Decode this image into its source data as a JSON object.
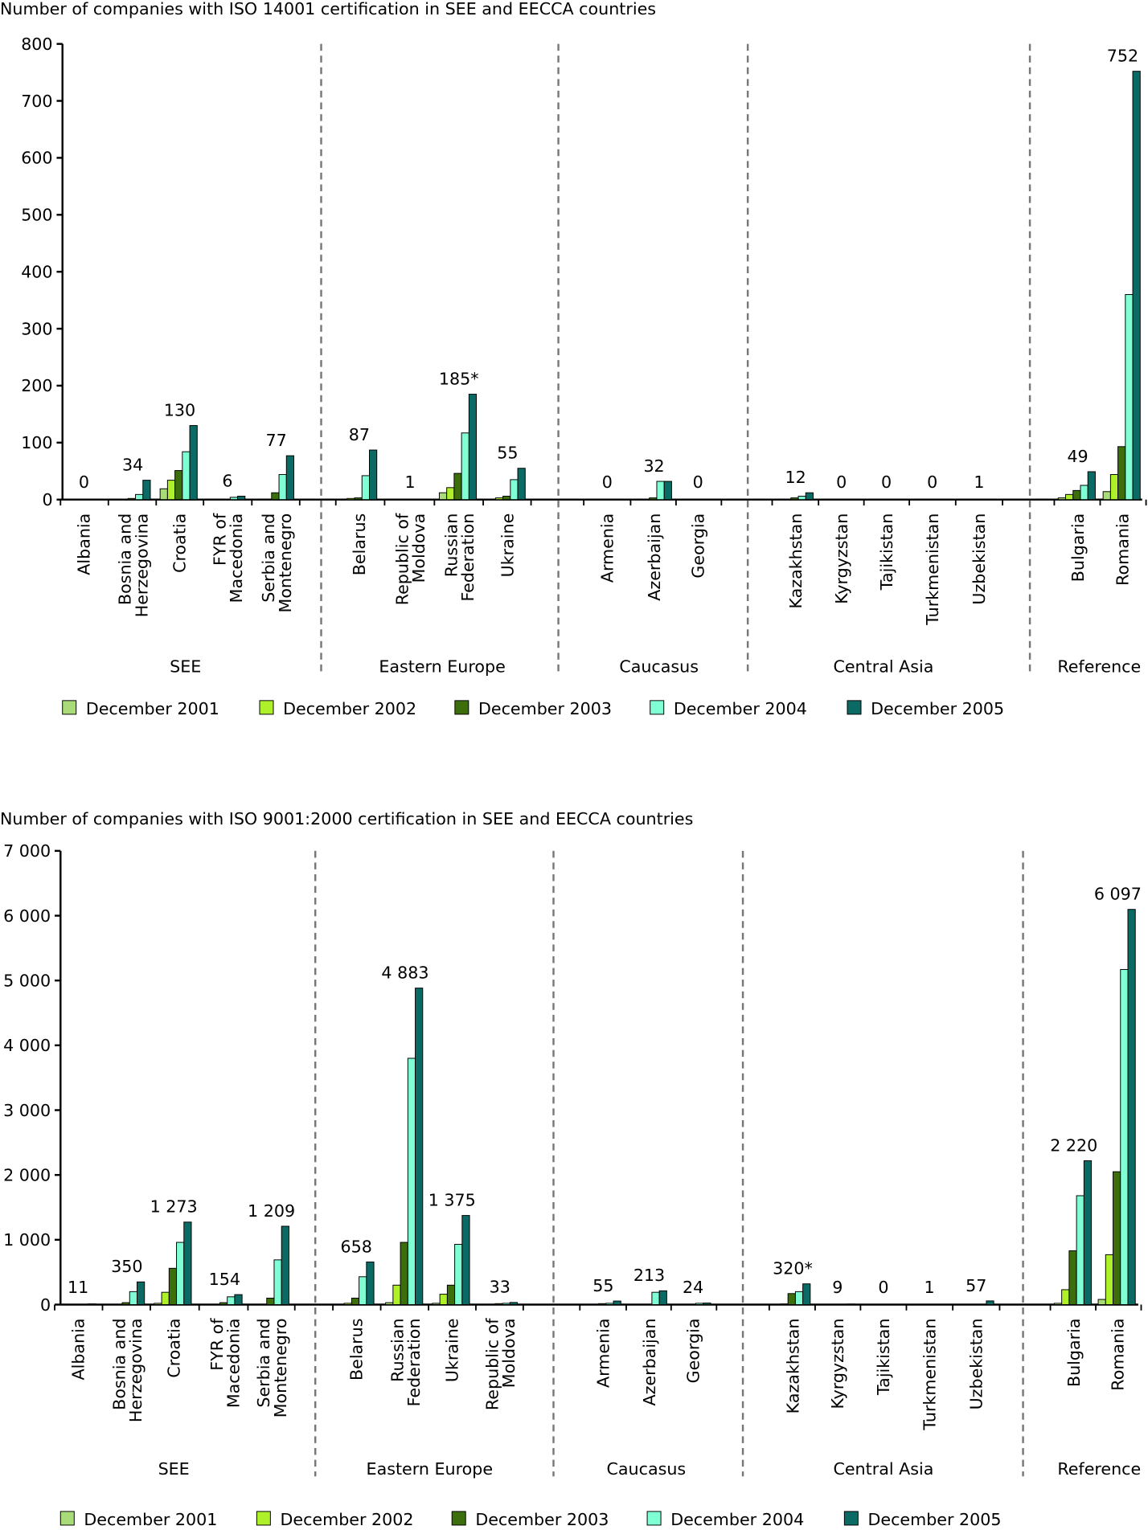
{
  "colors": {
    "December 2001": "#a9dc78",
    "December 2002": "#aef02a",
    "December 2003": "#3c6e0c",
    "December 2004": "#80ffd4",
    "December 2005": "#0b6a64"
  },
  "chart_data": [
    {
      "type": "bar",
      "title": "Number of companies with ISO 14001 certification in SEE and EECCA countries",
      "ylim": [
        0,
        800
      ],
      "yticks": [
        "0",
        "100",
        "200",
        "300",
        "400",
        "500",
        "600",
        "700",
        "800"
      ],
      "grid": false,
      "legend": "bottom",
      "series_names": [
        "December 2001",
        "December 2002",
        "December 2003",
        "December 2004",
        "December 2005"
      ],
      "groups": [
        "SEE",
        "Eastern Europe",
        "Caucasus",
        "Central Asia",
        "Reference"
      ],
      "countries": [
        {
          "name": "Albania",
          "group": "SEE",
          "label": "0",
          "values": [
            0,
            0,
            0,
            0,
            0
          ]
        },
        {
          "name": "Bosnia and Herzegovina",
          "group": "SEE",
          "label": "34",
          "values": [
            0,
            0,
            2,
            9,
            34
          ]
        },
        {
          "name": "Croatia",
          "group": "SEE",
          "label": "130",
          "values": [
            19,
            34,
            51,
            84,
            130
          ]
        },
        {
          "name": "FYR of Macedonia",
          "group": "SEE",
          "label": "6",
          "values": [
            0,
            0,
            0,
            4,
            6
          ]
        },
        {
          "name": "Serbia and Montenegro",
          "group": "SEE",
          "label": "77",
          "values": [
            0,
            0,
            12,
            44,
            77
          ]
        },
        {
          "name": "Belarus",
          "group": "Eastern Europe",
          "label": "87",
          "values": [
            0,
            2,
            3,
            42,
            87
          ]
        },
        {
          "name": "Republic of Moldova",
          "group": "Eastern Europe",
          "label": "1",
          "values": [
            0,
            0,
            0,
            0,
            1
          ]
        },
        {
          "name": "Russian Federation",
          "group": "Eastern Europe",
          "label": "185*",
          "values": [
            12,
            21,
            46,
            117,
            185
          ]
        },
        {
          "name": "Ukraine",
          "group": "Eastern Europe",
          "label": "55",
          "values": [
            0,
            3,
            6,
            35,
            55
          ]
        },
        {
          "name": "Armenia",
          "group": "Caucasus",
          "label": "0",
          "values": [
            0,
            0,
            0,
            0,
            0
          ]
        },
        {
          "name": "Azerbaijan",
          "group": "Caucasus",
          "label": "32",
          "values": [
            0,
            1,
            3,
            32,
            32
          ]
        },
        {
          "name": "Georgia",
          "group": "Caucasus",
          "label": "0",
          "values": [
            0,
            0,
            0,
            0,
            0
          ]
        },
        {
          "name": "Kazakhstan",
          "group": "Central Asia",
          "label": "12",
          "values": [
            0,
            0,
            3,
            6,
            12
          ]
        },
        {
          "name": "Kyrgyzstan",
          "group": "Central Asia",
          "label": "0",
          "values": [
            0,
            0,
            0,
            0,
            0
          ]
        },
        {
          "name": "Tajikistan",
          "group": "Central Asia",
          "label": "0",
          "values": [
            0,
            0,
            0,
            0,
            0
          ]
        },
        {
          "name": "Turkmenistan",
          "group": "Central Asia",
          "label": "0",
          "values": [
            0,
            0,
            0,
            0,
            0
          ]
        },
        {
          "name": "Uzbekistan",
          "group": "Central Asia",
          "label": "1",
          "values": [
            0,
            0,
            0,
            0,
            1
          ]
        },
        {
          "name": "Bulgaria",
          "group": "Reference",
          "label": "49",
          "values": [
            3,
            9,
            16,
            25,
            49
          ]
        },
        {
          "name": "Romania",
          "group": "Reference",
          "label": "752",
          "values": [
            14,
            44,
            93,
            360,
            752
          ]
        }
      ]
    },
    {
      "type": "bar",
      "title": "Number of companies with ISO 9001:2000 certification in SEE and EECCA countries",
      "ylim": [
        0,
        7000
      ],
      "yticks": [
        "0",
        "1 000",
        "2 000",
        "3 000",
        "4 000",
        "5 000",
        "6 000",
        "7 000"
      ],
      "grid": false,
      "legend": "bottom",
      "series_names": [
        "December 2001",
        "December 2002",
        "December 2003",
        "December 2004",
        "December 2005"
      ],
      "groups": [
        "SEE",
        "Eastern Europe",
        "Caucasus",
        "Central Asia",
        "Reference"
      ],
      "countries": [
        {
          "name": "Albania",
          "group": "SEE",
          "label": "11",
          "values": [
            0,
            0,
            0,
            0,
            11
          ]
        },
        {
          "name": "Bosnia and Herzegovina",
          "group": "SEE",
          "label": "350",
          "values": [
            0,
            0,
            30,
            200,
            350
          ]
        },
        {
          "name": "Croatia",
          "group": "SEE",
          "label": "1 273",
          "values": [
            20,
            190,
            560,
            960,
            1273
          ]
        },
        {
          "name": "FYR of Macedonia",
          "group": "SEE",
          "label": "154",
          "values": [
            0,
            0,
            30,
            120,
            154
          ]
        },
        {
          "name": "Serbia and Montenegro",
          "group": "SEE",
          "label": "1 209",
          "values": [
            0,
            0,
            100,
            690,
            1209
          ]
        },
        {
          "name": "Belarus",
          "group": "Eastern Europe",
          "label": "658",
          "values": [
            0,
            20,
            100,
            430,
            658
          ]
        },
        {
          "name": "Russian Federation",
          "group": "Eastern Europe",
          "label": "4 883",
          "values": [
            30,
            300,
            960,
            3800,
            4883
          ]
        },
        {
          "name": "Ukraine",
          "group": "Eastern Europe",
          "label": "1 375",
          "values": [
            20,
            160,
            300,
            930,
            1375
          ]
        },
        {
          "name": "Republic of Moldova",
          "group": "Eastern Europe",
          "label": "33",
          "values": [
            0,
            0,
            15,
            20,
            33
          ]
        },
        {
          "name": "Armenia",
          "group": "Caucasus",
          "label": "55",
          "values": [
            0,
            0,
            15,
            20,
            55
          ]
        },
        {
          "name": "Azerbaijan",
          "group": "Caucasus",
          "label": "213",
          "values": [
            0,
            0,
            0,
            190,
            213
          ]
        },
        {
          "name": "Georgia",
          "group": "Caucasus",
          "label": "24",
          "values": [
            0,
            0,
            0,
            20,
            24
          ]
        },
        {
          "name": "Kazakhstan",
          "group": "Central Asia",
          "label": "320*",
          "values": [
            0,
            10,
            170,
            200,
            320
          ]
        },
        {
          "name": "Kyrgyzstan",
          "group": "Central Asia",
          "label": "9",
          "values": [
            0,
            0,
            0,
            0,
            9
          ]
        },
        {
          "name": "Tajikistan",
          "group": "Central Asia",
          "label": "0",
          "values": [
            0,
            0,
            0,
            0,
            0
          ]
        },
        {
          "name": "Turkmenistan",
          "group": "Central Asia",
          "label": "1",
          "values": [
            0,
            0,
            0,
            0,
            1
          ]
        },
        {
          "name": "Uzbekistan",
          "group": "Central Asia",
          "label": "57",
          "values": [
            0,
            0,
            0,
            0,
            57
          ]
        },
        {
          "name": "Bulgaria",
          "group": "Reference",
          "label": "2 220",
          "values": [
            20,
            230,
            830,
            1680,
            2220
          ]
        },
        {
          "name": "Romania",
          "group": "Reference",
          "label": "6 097",
          "values": [
            80,
            770,
            2050,
            5170,
            6097
          ]
        }
      ]
    }
  ]
}
